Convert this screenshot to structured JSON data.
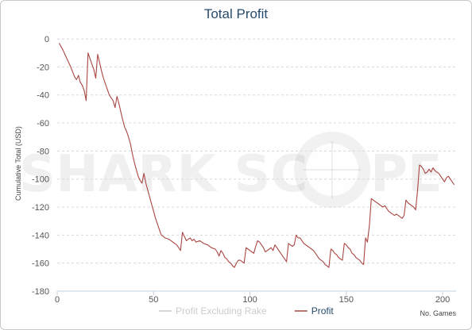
{
  "chart_data": {
    "type": "line",
    "title": "Total Profit",
    "ylabel": "Cumulative Total (USD)",
    "xlabel": "No. Games",
    "xlim": [
      0,
      207
    ],
    "ylim": [
      -180,
      4
    ],
    "x_ticks": [
      0,
      50,
      100,
      150,
      200
    ],
    "y_ticks": [
      0,
      -20,
      -40,
      -60,
      -80,
      -100,
      -120,
      -140,
      -160,
      -180
    ],
    "grid": "horizontal dashed",
    "legend_position": "bottom-center",
    "watermark": "SHARK SCOPE",
    "series": [
      {
        "name": "Profit Excluding Rake",
        "color": "#cccccc",
        "points": []
      },
      {
        "name": "Profit",
        "color": "#aa4643",
        "points": [
          [
            1,
            -3
          ],
          [
            3,
            -8
          ],
          [
            5,
            -14
          ],
          [
            7,
            -20
          ],
          [
            9,
            -27
          ],
          [
            10,
            -29
          ],
          [
            11,
            -26
          ],
          [
            12,
            -31
          ],
          [
            13,
            -33
          ],
          [
            14,
            -37
          ],
          [
            15,
            -44
          ],
          [
            16,
            -10
          ],
          [
            17,
            -14
          ],
          [
            18,
            -18
          ],
          [
            19,
            -22
          ],
          [
            20,
            -28
          ],
          [
            21,
            -11
          ],
          [
            22,
            -17
          ],
          [
            23,
            -23
          ],
          [
            24,
            -28
          ],
          [
            25,
            -32
          ],
          [
            26,
            -36
          ],
          [
            27,
            -40
          ],
          [
            28,
            -42
          ],
          [
            29,
            -44
          ],
          [
            30,
            -49
          ],
          [
            31,
            -41
          ],
          [
            32,
            -46
          ],
          [
            33,
            -52
          ],
          [
            34,
            -58
          ],
          [
            35,
            -63
          ],
          [
            36,
            -66
          ],
          [
            37,
            -70
          ],
          [
            38,
            -75
          ],
          [
            39,
            -82
          ],
          [
            40,
            -88
          ],
          [
            41,
            -93
          ],
          [
            42,
            -98
          ],
          [
            43,
            -101
          ],
          [
            44,
            -103
          ],
          [
            45,
            -96
          ],
          [
            46,
            -103
          ],
          [
            47,
            -108
          ],
          [
            48,
            -113
          ],
          [
            49,
            -118
          ],
          [
            50,
            -123
          ],
          [
            51,
            -128
          ],
          [
            52,
            -132
          ],
          [
            53,
            -136
          ],
          [
            54,
            -140
          ],
          [
            56,
            -142
          ],
          [
            58,
            -143
          ],
          [
            60,
            -145
          ],
          [
            62,
            -147
          ],
          [
            63,
            -149
          ],
          [
            64,
            -151
          ],
          [
            65,
            -138
          ],
          [
            66,
            -141
          ],
          [
            67,
            -144
          ],
          [
            68,
            -143
          ],
          [
            69,
            -142
          ],
          [
            70,
            -144
          ],
          [
            71,
            -143
          ],
          [
            72,
            -145
          ],
          [
            74,
            -144
          ],
          [
            76,
            -146
          ],
          [
            78,
            -147
          ],
          [
            80,
            -149
          ],
          [
            82,
            -150
          ],
          [
            83,
            -152
          ],
          [
            84,
            -155
          ],
          [
            85,
            -151
          ],
          [
            86,
            -153
          ],
          [
            87,
            -156
          ],
          [
            88,
            -157
          ],
          [
            89,
            -159
          ],
          [
            90,
            -160
          ],
          [
            91,
            -162
          ],
          [
            92,
            -163
          ],
          [
            93,
            -160
          ],
          [
            94,
            -158
          ],
          [
            95,
            -158
          ],
          [
            96,
            -159
          ],
          [
            97,
            -160
          ],
          [
            98,
            -149
          ],
          [
            99,
            -150
          ],
          [
            100,
            -151
          ],
          [
            101,
            -152
          ],
          [
            102,
            -153
          ],
          [
            103,
            -148
          ],
          [
            104,
            -144
          ],
          [
            105,
            -145
          ],
          [
            106,
            -147
          ],
          [
            107,
            -149
          ],
          [
            108,
            -152
          ],
          [
            109,
            -151
          ],
          [
            110,
            -150
          ],
          [
            111,
            -149
          ],
          [
            112,
            -151
          ],
          [
            113,
            -147
          ],
          [
            114,
            -149
          ],
          [
            115,
            -151
          ],
          [
            116,
            -153
          ],
          [
            117,
            -155
          ],
          [
            118,
            -157
          ],
          [
            119,
            -159
          ],
          [
            120,
            -146
          ],
          [
            121,
            -147
          ],
          [
            122,
            -148
          ],
          [
            123,
            -147
          ],
          [
            124,
            -140
          ],
          [
            125,
            -142
          ],
          [
            126,
            -142
          ],
          [
            127,
            -144
          ],
          [
            128,
            -146
          ],
          [
            129,
            -147
          ],
          [
            130,
            -148
          ],
          [
            131,
            -149
          ],
          [
            132,
            -150
          ],
          [
            133,
            -151
          ],
          [
            134,
            -153
          ],
          [
            135,
            -155
          ],
          [
            136,
            -157
          ],
          [
            137,
            -158
          ],
          [
            138,
            -159
          ],
          [
            139,
            -161
          ],
          [
            140,
            -162
          ],
          [
            141,
            -163
          ],
          [
            142,
            -150
          ],
          [
            143,
            -151
          ],
          [
            144,
            -153
          ],
          [
            145,
            -154
          ],
          [
            146,
            -156
          ],
          [
            147,
            -157
          ],
          [
            148,
            -158
          ],
          [
            149,
            -146
          ],
          [
            150,
            -147
          ],
          [
            151,
            -149
          ],
          [
            152,
            -150
          ],
          [
            153,
            -153
          ],
          [
            154,
            -154
          ],
          [
            155,
            -156
          ],
          [
            156,
            -157
          ],
          [
            157,
            -158
          ],
          [
            158,
            -160
          ],
          [
            159,
            -161
          ],
          [
            160,
            -142
          ],
          [
            161,
            -145
          ],
          [
            162,
            -133
          ],
          [
            163,
            -114
          ],
          [
            164,
            -115
          ],
          [
            165,
            -116
          ],
          [
            166,
            -117
          ],
          [
            167,
            -118
          ],
          [
            168,
            -119
          ],
          [
            169,
            -120
          ],
          [
            170,
            -119
          ],
          [
            171,
            -121
          ],
          [
            172,
            -123
          ],
          [
            173,
            -124
          ],
          [
            174,
            -125
          ],
          [
            175,
            -126
          ],
          [
            176,
            -125
          ],
          [
            177,
            -126
          ],
          [
            178,
            -127
          ],
          [
            179,
            -128
          ],
          [
            180,
            -126
          ],
          [
            181,
            -115
          ],
          [
            182,
            -117
          ],
          [
            183,
            -118
          ],
          [
            184,
            -119
          ],
          [
            185,
            -120
          ],
          [
            186,
            -122
          ],
          [
            187,
            -108
          ],
          [
            188,
            -90
          ],
          [
            189,
            -91
          ],
          [
            190,
            -93
          ],
          [
            191,
            -96
          ],
          [
            192,
            -95
          ],
          [
            193,
            -93
          ],
          [
            194,
            -95
          ],
          [
            195,
            -92
          ],
          [
            196,
            -94
          ],
          [
            197,
            -95
          ],
          [
            198,
            -96
          ],
          [
            199,
            -98
          ],
          [
            200,
            -100
          ],
          [
            201,
            -102
          ],
          [
            202,
            -99
          ],
          [
            203,
            -98
          ],
          [
            204,
            -100
          ],
          [
            205,
            -102
          ],
          [
            206,
            -104
          ]
        ]
      }
    ]
  }
}
